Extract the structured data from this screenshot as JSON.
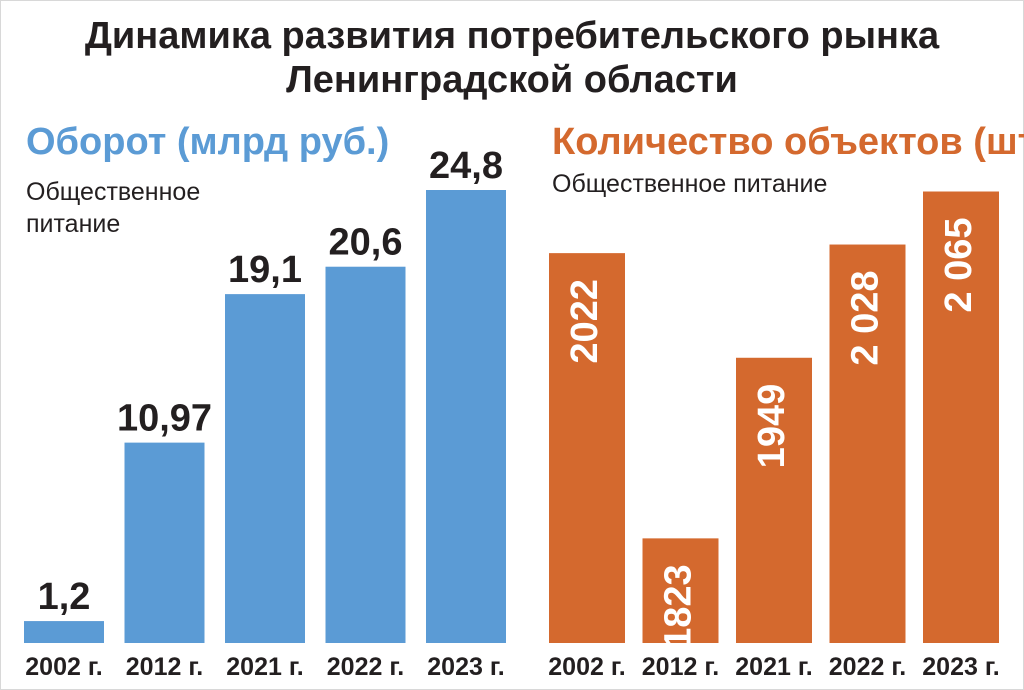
{
  "title_line1": "Динамика развития потребительского рынка",
  "title_line2": "Ленинградской области",
  "chart_data": [
    {
      "type": "bar",
      "title": "Оборот (млрд руб.)",
      "subtitle": "Общественное питание",
      "categories": [
        "2002 г.",
        "2012 г.",
        "2021 г.",
        "2022 г.",
        "2023 г."
      ],
      "values": [
        1.2,
        10.97,
        19.1,
        20.6,
        24.8
      ],
      "labels": [
        "1,2",
        "10,97",
        "19,1",
        "20,6",
        "24,8"
      ],
      "color": "#5b9bd5",
      "ylim": [
        0,
        27
      ]
    },
    {
      "type": "bar",
      "title": "Количество объектов (шт.)",
      "subtitle": "Общественное питание",
      "categories": [
        "2002 г.",
        "2012 г.",
        "2021 г.",
        "2022 г.",
        "2023 г."
      ],
      "values": [
        2022,
        1823,
        1949,
        2028,
        2065
      ],
      "labels": [
        "2022",
        "1823",
        "1949",
        "2 028",
        "2 065"
      ],
      "color": "#d4692e",
      "ylim": [
        1750,
        2080
      ]
    }
  ]
}
